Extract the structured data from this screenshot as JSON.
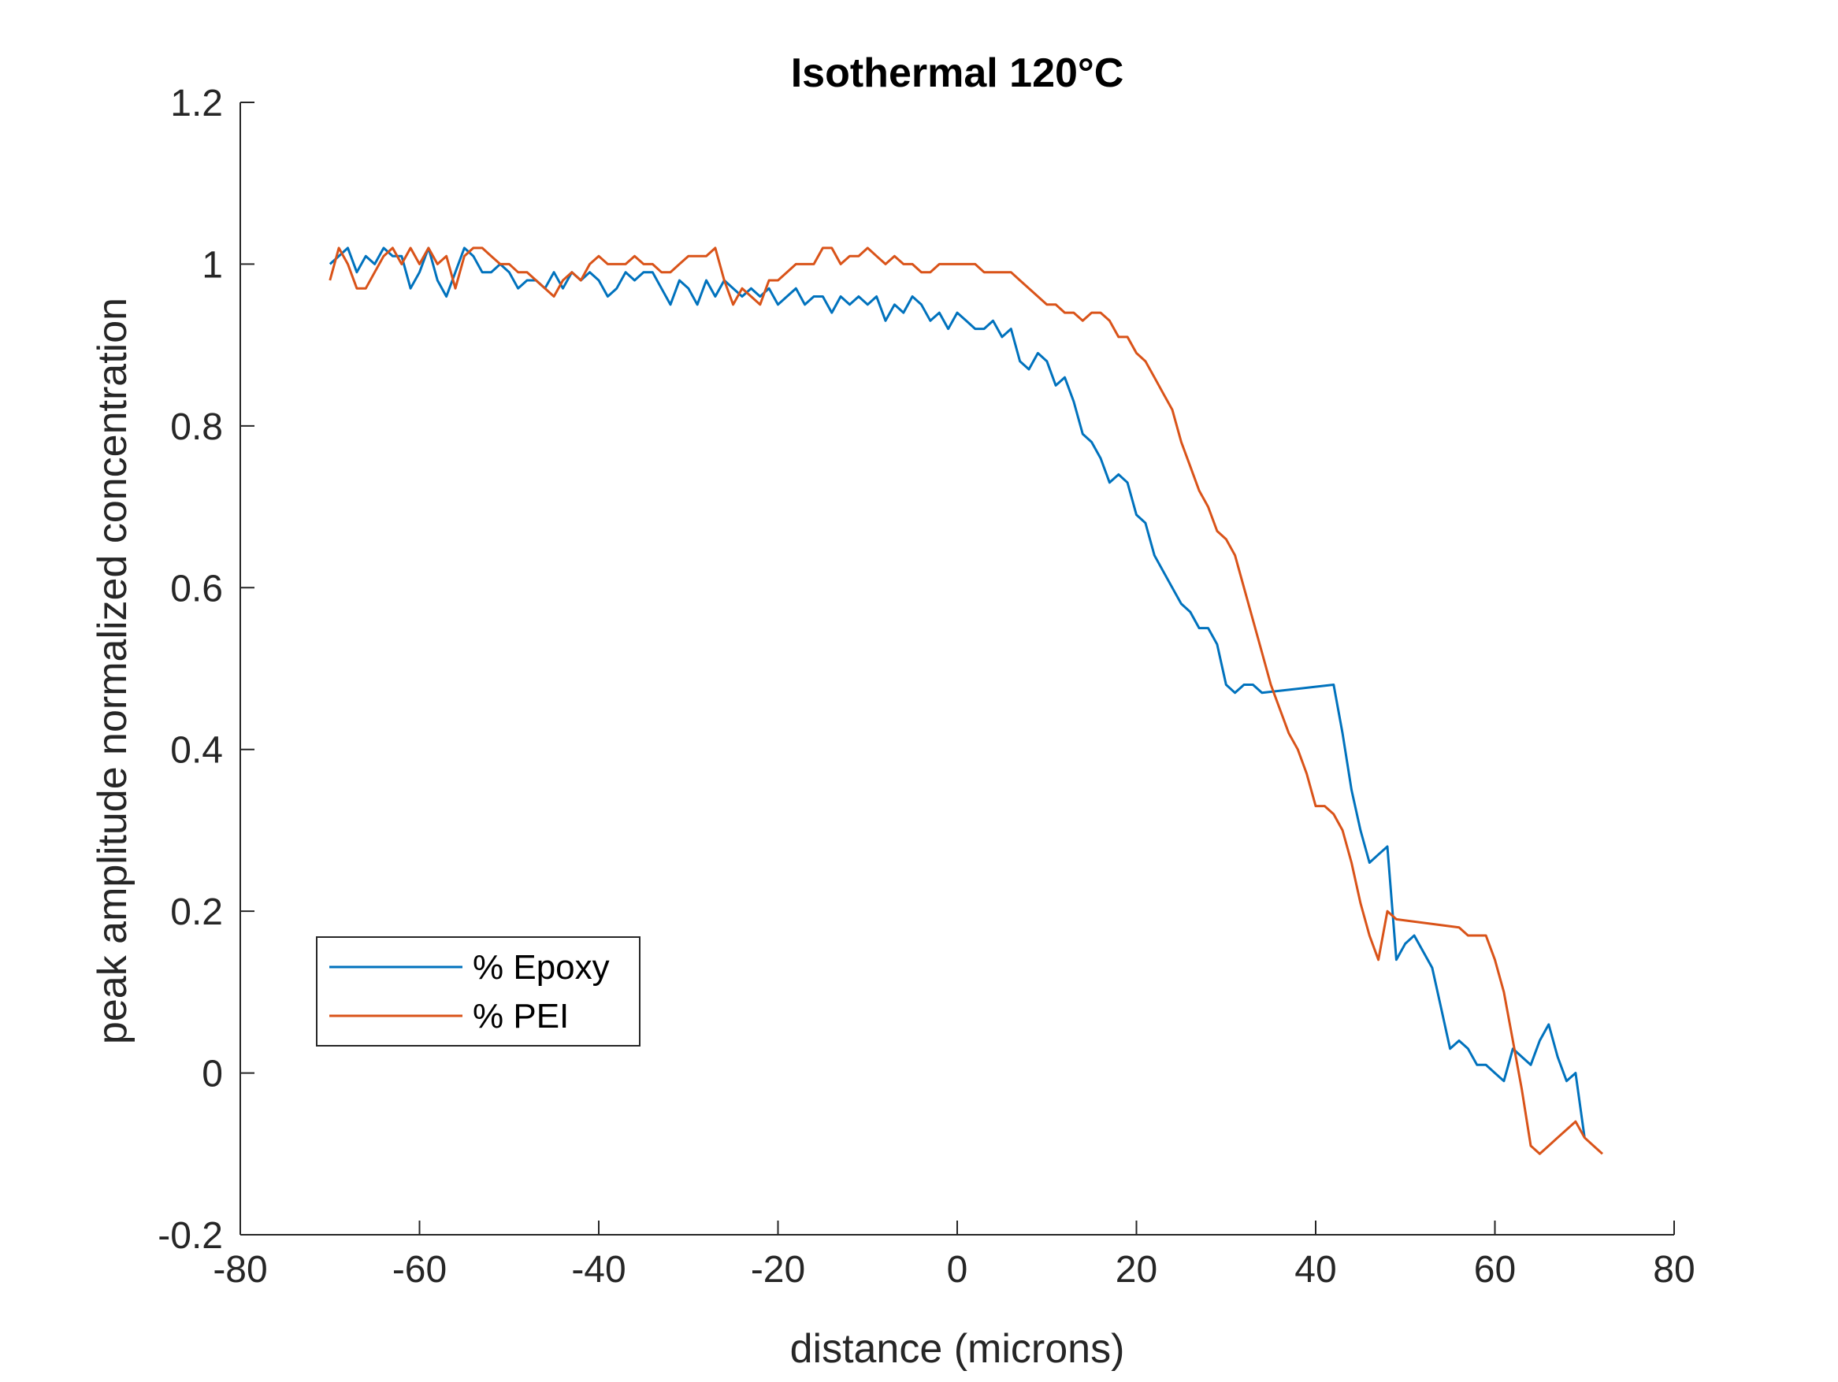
{
  "chart_data": {
    "type": "line",
    "title": "Isothermal 120°C",
    "xlabel": "distance (microns)",
    "ylabel": "peak amplitude normalized concentration",
    "xlim": [
      -80,
      80
    ],
    "ylim": [
      -0.2,
      1.2
    ],
    "x_ticks": [
      -80,
      -60,
      -40,
      -20,
      0,
      20,
      40,
      60,
      80
    ],
    "x_tick_labels": [
      "-80",
      "-60",
      "-40",
      "-20",
      "0",
      "20",
      "40",
      "60",
      "80"
    ],
    "y_ticks": [
      -0.2,
      0,
      0.2,
      0.4,
      0.6,
      0.8,
      1,
      1.2
    ],
    "y_tick_labels": [
      "-0.2",
      "0",
      "0.2",
      "0.4",
      "0.6",
      "0.8",
      "1",
      "1.2"
    ],
    "grid": false,
    "legend_position": "lower-left",
    "series": [
      {
        "name": "% Epoxy",
        "color": "#0072BD",
        "x": [
          -70,
          -69,
          -68,
          -67,
          -66,
          -65,
          -64,
          -63,
          -62,
          -61,
          -60,
          -59,
          -58,
          -57,
          -56,
          -55,
          -54,
          -53,
          -52,
          -51,
          -50,
          -49,
          -48,
          -47,
          -46,
          -45,
          -44,
          -43,
          -42,
          -41,
          -40,
          -39,
          -38,
          -37,
          -36,
          -35,
          -34,
          -33,
          -32,
          -31,
          -30,
          -29,
          -28,
          -27,
          -26,
          -25,
          -24,
          -23,
          -22,
          -21,
          -20,
          -19,
          -18,
          -17,
          -16,
          -15,
          -14,
          -13,
          -12,
          -11,
          -10,
          -9,
          -8,
          -7,
          -6,
          -5,
          -4,
          -3,
          -2,
          -1,
          0,
          1,
          2,
          3,
          4,
          5,
          6,
          7,
          8,
          9,
          10,
          11,
          12,
          13,
          14,
          15,
          16,
          17,
          18,
          19,
          20,
          21,
          22,
          23,
          24,
          25,
          26,
          27,
          28,
          29,
          30,
          31,
          32,
          33,
          34,
          42,
          43,
          44,
          45,
          46,
          47,
          48,
          49,
          50,
          51,
          52,
          53,
          54,
          55,
          56,
          57,
          58,
          59,
          60,
          61,
          62,
          63,
          64,
          65,
          66,
          67,
          68,
          69,
          70
        ],
        "y": [
          1.0,
          1.01,
          1.02,
          0.99,
          1.01,
          1.0,
          1.02,
          1.01,
          1.01,
          0.97,
          0.99,
          1.02,
          0.98,
          0.96,
          0.99,
          1.02,
          1.01,
          0.99,
          0.99,
          1.0,
          0.99,
          0.97,
          0.98,
          0.98,
          0.97,
          0.99,
          0.97,
          0.99,
          0.98,
          0.99,
          0.98,
          0.96,
          0.97,
          0.99,
          0.98,
          0.99,
          0.99,
          0.97,
          0.95,
          0.98,
          0.97,
          0.95,
          0.98,
          0.96,
          0.98,
          0.97,
          0.96,
          0.97,
          0.96,
          0.97,
          0.95,
          0.96,
          0.97,
          0.95,
          0.96,
          0.96,
          0.94,
          0.96,
          0.95,
          0.96,
          0.95,
          0.96,
          0.93,
          0.95,
          0.94,
          0.96,
          0.95,
          0.93,
          0.94,
          0.92,
          0.94,
          0.93,
          0.92,
          0.92,
          0.93,
          0.91,
          0.92,
          0.88,
          0.87,
          0.89,
          0.88,
          0.85,
          0.86,
          0.83,
          0.79,
          0.78,
          0.76,
          0.73,
          0.74,
          0.73,
          0.69,
          0.68,
          0.64,
          0.62,
          0.6,
          0.58,
          0.57,
          0.55,
          0.55,
          0.53,
          0.48,
          0.47,
          0.48,
          0.48,
          0.47,
          0.48,
          0.42,
          0.35,
          0.3,
          0.26,
          0.27,
          0.28,
          0.14,
          0.16,
          0.17,
          0.15,
          0.13,
          0.08,
          0.03,
          0.04,
          0.03,
          0.01,
          0.01,
          0.0,
          -0.01,
          0.03,
          0.02,
          0.01,
          0.04,
          0.06,
          0.02,
          -0.01,
          0.0,
          -0.08
        ]
      },
      {
        "name": "% PEI",
        "color": "#D95319",
        "x": [
          -70,
          -69,
          -68,
          -67,
          -66,
          -65,
          -64,
          -63,
          -62,
          -61,
          -60,
          -59,
          -58,
          -57,
          -56,
          -55,
          -54,
          -53,
          -52,
          -51,
          -50,
          -49,
          -48,
          -47,
          -46,
          -45,
          -44,
          -43,
          -42,
          -41,
          -40,
          -39,
          -38,
          -37,
          -36,
          -35,
          -34,
          -33,
          -32,
          -31,
          -30,
          -29,
          -28,
          -27,
          -26,
          -25,
          -24,
          -23,
          -22,
          -21,
          -20,
          -19,
          -18,
          -17,
          -16,
          -15,
          -14,
          -13,
          -12,
          -11,
          -10,
          -9,
          -8,
          -7,
          -6,
          -5,
          -4,
          -3,
          -2,
          -1,
          0,
          1,
          2,
          3,
          4,
          5,
          6,
          7,
          8,
          9,
          10,
          11,
          12,
          13,
          14,
          15,
          16,
          17,
          18,
          19,
          20,
          21,
          22,
          23,
          24,
          25,
          26,
          27,
          28,
          29,
          30,
          31,
          32,
          33,
          34,
          35,
          36,
          37,
          38,
          39,
          40,
          41,
          42,
          43,
          44,
          45,
          46,
          47,
          48,
          49,
          56,
          57,
          58,
          59,
          60,
          61,
          62,
          63,
          64,
          65,
          66,
          67,
          68,
          69,
          70,
          71,
          72
        ],
        "y": [
          0.98,
          1.02,
          1.0,
          0.97,
          0.97,
          0.99,
          1.01,
          1.02,
          1.0,
          1.02,
          1.0,
          1.02,
          1.0,
          1.01,
          0.97,
          1.01,
          1.02,
          1.02,
          1.01,
          1.0,
          1.0,
          0.99,
          0.99,
          0.98,
          0.97,
          0.96,
          0.98,
          0.99,
          0.98,
          1.0,
          1.01,
          1.0,
          1.0,
          1.0,
          1.01,
          1.0,
          1.0,
          0.99,
          0.99,
          1.0,
          1.01,
          1.01,
          1.01,
          1.02,
          0.98,
          0.95,
          0.97,
          0.96,
          0.95,
          0.98,
          0.98,
          0.99,
          1.0,
          1.0,
          1.0,
          1.02,
          1.02,
          1.0,
          1.01,
          1.01,
          1.02,
          1.01,
          1.0,
          1.01,
          1.0,
          1.0,
          0.99,
          0.99,
          1.0,
          1.0,
          1.0,
          1.0,
          1.0,
          0.99,
          0.99,
          0.99,
          0.99,
          0.98,
          0.97,
          0.96,
          0.95,
          0.95,
          0.94,
          0.94,
          0.93,
          0.94,
          0.94,
          0.93,
          0.91,
          0.91,
          0.89,
          0.88,
          0.86,
          0.84,
          0.82,
          0.78,
          0.75,
          0.72,
          0.7,
          0.67,
          0.66,
          0.64,
          0.6,
          0.56,
          0.52,
          0.48,
          0.45,
          0.42,
          0.4,
          0.37,
          0.33,
          0.33,
          0.32,
          0.3,
          0.26,
          0.21,
          0.17,
          0.14,
          0.2,
          0.19,
          0.18,
          0.17,
          0.17,
          0.17,
          0.14,
          0.1,
          0.04,
          -0.02,
          -0.09,
          -0.1,
          -0.09,
          -0.08,
          -0.07,
          -0.06,
          -0.08,
          -0.09,
          -0.1
        ]
      }
    ]
  }
}
